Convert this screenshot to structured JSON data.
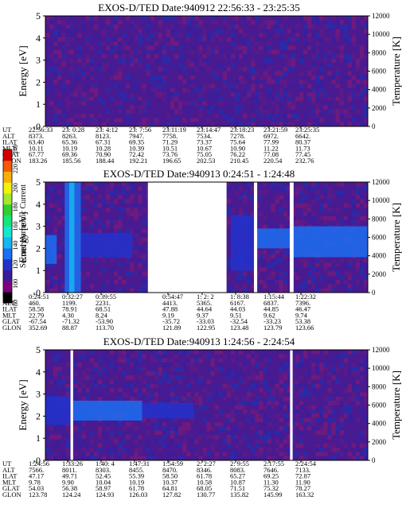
{
  "figure": {
    "colorbar": {
      "label": "Second Harmonic Current",
      "ticks": [
        "240",
        "220",
        "200",
        "180",
        "160",
        "140",
        "120",
        "100",
        "80"
      ],
      "range": [
        80,
        240
      ],
      "colors": [
        "#000000",
        "#7f007f",
        "#3a1a9a",
        "#2233cc",
        "#1c6ef2",
        "#16b6f0",
        "#16e6d0",
        "#16e67a",
        "#30d030",
        "#a6e62c",
        "#f2f20c",
        "#f7b00a",
        "#f45a08",
        "#d00000"
      ]
    },
    "panel_meta_labels": [
      "UT",
      "ALT",
      "ILAT",
      "MLT",
      "GLAT",
      "GLON"
    ]
  },
  "chart_data": [
    {
      "type": "heatmap",
      "title": "EXOS-D/TED   Date:940912  22:56:33 - 23:25:35",
      "ylabel": "Energy [eV]",
      "ylabel_right": "Temperature [K]",
      "ylim": [
        0,
        5
      ],
      "yticks": [
        "0",
        "1",
        "2",
        "3",
        "4",
        "5"
      ],
      "ylim_right": [
        0,
        12000
      ],
      "yticks_right": [
        "0",
        "2000",
        "4000",
        "6000",
        "8000",
        "10000",
        "12000"
      ],
      "gaps": [],
      "features": [],
      "table": {
        "UT": [
          "22:56:33",
          "23: 0:28",
          "23: 4:12",
          "23: 7:56",
          "23:11:19",
          "23:14:47",
          "23:18:23",
          "23:21:59",
          "23:25:35"
        ],
        "ALT": [
          "8373.",
          "8263.",
          "8123.",
          "7947.",
          "7758.",
          "7534.",
          "7278.",
          "6972.",
          "6642."
        ],
        "ILAT": [
          "63.40",
          "65.36",
          "67.31",
          "69.35",
          "71.29",
          "73.37",
          "75.64",
          "77.99",
          "80.37"
        ],
        "MLT": [
          "10.11",
          "10.19",
          "10.28",
          "10.39",
          "10.51",
          "10.67",
          "10.90",
          "11.22",
          "11.73"
        ],
        "GLAT": [
          "67.77",
          "69.36",
          "70.90",
          "72.42",
          "73.76",
          "75.05",
          "76.22",
          "77.08",
          "77.45"
        ],
        "GLON": [
          "183.26",
          "185.56",
          "188.44",
          "192.21",
          "196.65",
          "202.53",
          "210.45",
          "220.54",
          "232.76"
        ]
      }
    },
    {
      "type": "heatmap",
      "title": "EXOS-D/TED   Date:940913  0:24:51 - 1:24:48",
      "ylabel": "Energy [eV]",
      "ylabel_right": "Temperature [K]",
      "ylim": [
        0,
        5
      ],
      "yticks": [
        "0",
        "1",
        "2",
        "3",
        "4",
        "5"
      ],
      "ylim_right": [
        0,
        12000
      ],
      "yticks_right": [
        "0",
        "2000",
        "4000",
        "6000",
        "8000",
        "10000",
        "12000"
      ],
      "gaps": [
        [
          0.318,
          0.562
        ],
        [
          0.647,
          0.657
        ],
        [
          0.758,
          0.77
        ]
      ],
      "features": [
        {
          "x0": 0.0,
          "x1": 0.035,
          "e0": 1.3,
          "e1": 2.6,
          "c": "#1c6ef2"
        },
        {
          "x0": 0.06,
          "x1": 0.11,
          "e0": 0.0,
          "e1": 5.0,
          "c": "#1c6ef2"
        },
        {
          "x0": 0.074,
          "x1": 0.09,
          "e0": 0.0,
          "e1": 5.0,
          "c": "#16b6f0"
        },
        {
          "x0": 0.11,
          "x1": 0.27,
          "e0": 1.6,
          "e1": 2.7,
          "c": "#2233cc"
        },
        {
          "x0": 0.575,
          "x1": 0.647,
          "e0": 1.0,
          "e1": 3.5,
          "c": "#2233cc"
        },
        {
          "x0": 0.657,
          "x1": 0.758,
          "e0": 2.0,
          "e1": 2.9,
          "c": "#1c6ef2"
        },
        {
          "x0": 0.77,
          "x1": 1.0,
          "e0": 1.6,
          "e1": 3.0,
          "c": "#1c6ef2"
        }
      ],
      "table": {
        "UT": [
          "0:24:51",
          "0:32:27",
          "0:39:55",
          "",
          "0:54:47",
          "1: 2: 2",
          "1: 8:38",
          "1:15:44",
          "1:22:32"
        ],
        "ALT": [
          "460.",
          "1199.",
          "2231.",
          "",
          "4413.",
          "5365.",
          "6167.",
          "6837.",
          "7396."
        ],
        "ILAT": [
          "58.58",
          "78.91",
          "68.51",
          "",
          "47.88",
          "44.64",
          "44.03",
          "44.85",
          "46.47"
        ],
        "MLT": [
          "22.79",
          "4.30",
          "8.24",
          "",
          "9.19",
          "9.37",
          "9.51",
          "9.62",
          "9.74"
        ],
        "GLAT": [
          "-67.54",
          "-71.32",
          "-53.90",
          "",
          "-35.72",
          "-33.03",
          "-32.54",
          "-33.23",
          "53.38"
        ],
        "GLON": [
          "352.69",
          "88.87",
          "113.70",
          "",
          "121.89",
          "122.95",
          "123.48",
          "123.79",
          "123.66"
        ]
      }
    },
    {
      "type": "heatmap",
      "title": "EXOS-D/TED   Date:940913  1:24:56 - 2:24:54",
      "ylabel": "Energy [eV]",
      "ylabel_right": "Temperature [K]",
      "ylim": [
        0,
        5
      ],
      "yticks": [
        "0",
        "1",
        "2",
        "3",
        "4",
        "5"
      ],
      "ylim_right": [
        0,
        12000
      ],
      "yticks_right": [
        "0",
        "2000",
        "4000",
        "6000",
        "8000",
        "10000",
        "12000"
      ],
      "gaps": [
        [
          0.078,
          0.086
        ],
        [
          0.759,
          0.767
        ]
      ],
      "features": [
        {
          "x0": 0.0,
          "x1": 0.078,
          "e0": 1.6,
          "e1": 2.9,
          "c": "#2233cc"
        },
        {
          "x0": 0.086,
          "x1": 0.3,
          "e0": 1.8,
          "e1": 2.7,
          "c": "#1c6ef2"
        },
        {
          "x0": 0.3,
          "x1": 0.46,
          "e0": 1.9,
          "e1": 2.6,
          "c": "#2233cc"
        }
      ],
      "table": {
        "UT": [
          "1:24:56",
          "1:33:26",
          "1:40: 4",
          "1:47:31",
          "1:54:59",
          "2: 2:27",
          "2: 9:55",
          "2:17:55",
          "2:24:54"
        ],
        "ALT": [
          "7566.",
          "8011.",
          "8303.",
          "8455.",
          "8470.",
          "8346.",
          "8083.",
          "7646.",
          "7133."
        ],
        "ILAT": [
          "47.17",
          "49.71",
          "52.45",
          "55.39",
          "58.50",
          "61.78",
          "65.27",
          "69.25",
          "72.87"
        ],
        "MLT": [
          "9.78",
          "9.90",
          "10.04",
          "10.19",
          "10.37",
          "10.58",
          "10.87",
          "11.30",
          "11.90"
        ],
        "GLAT": [
          "54.03",
          "56.38",
          "58.97",
          "61.78",
          "64.81",
          "68.05",
          "71.51",
          "75.32",
          "78.27"
        ],
        "GLON": [
          "123.78",
          "124.24",
          "124.93",
          "126.03",
          "127.82",
          "130.77",
          "135.82",
          "145.99",
          "163.32"
        ]
      }
    }
  ]
}
